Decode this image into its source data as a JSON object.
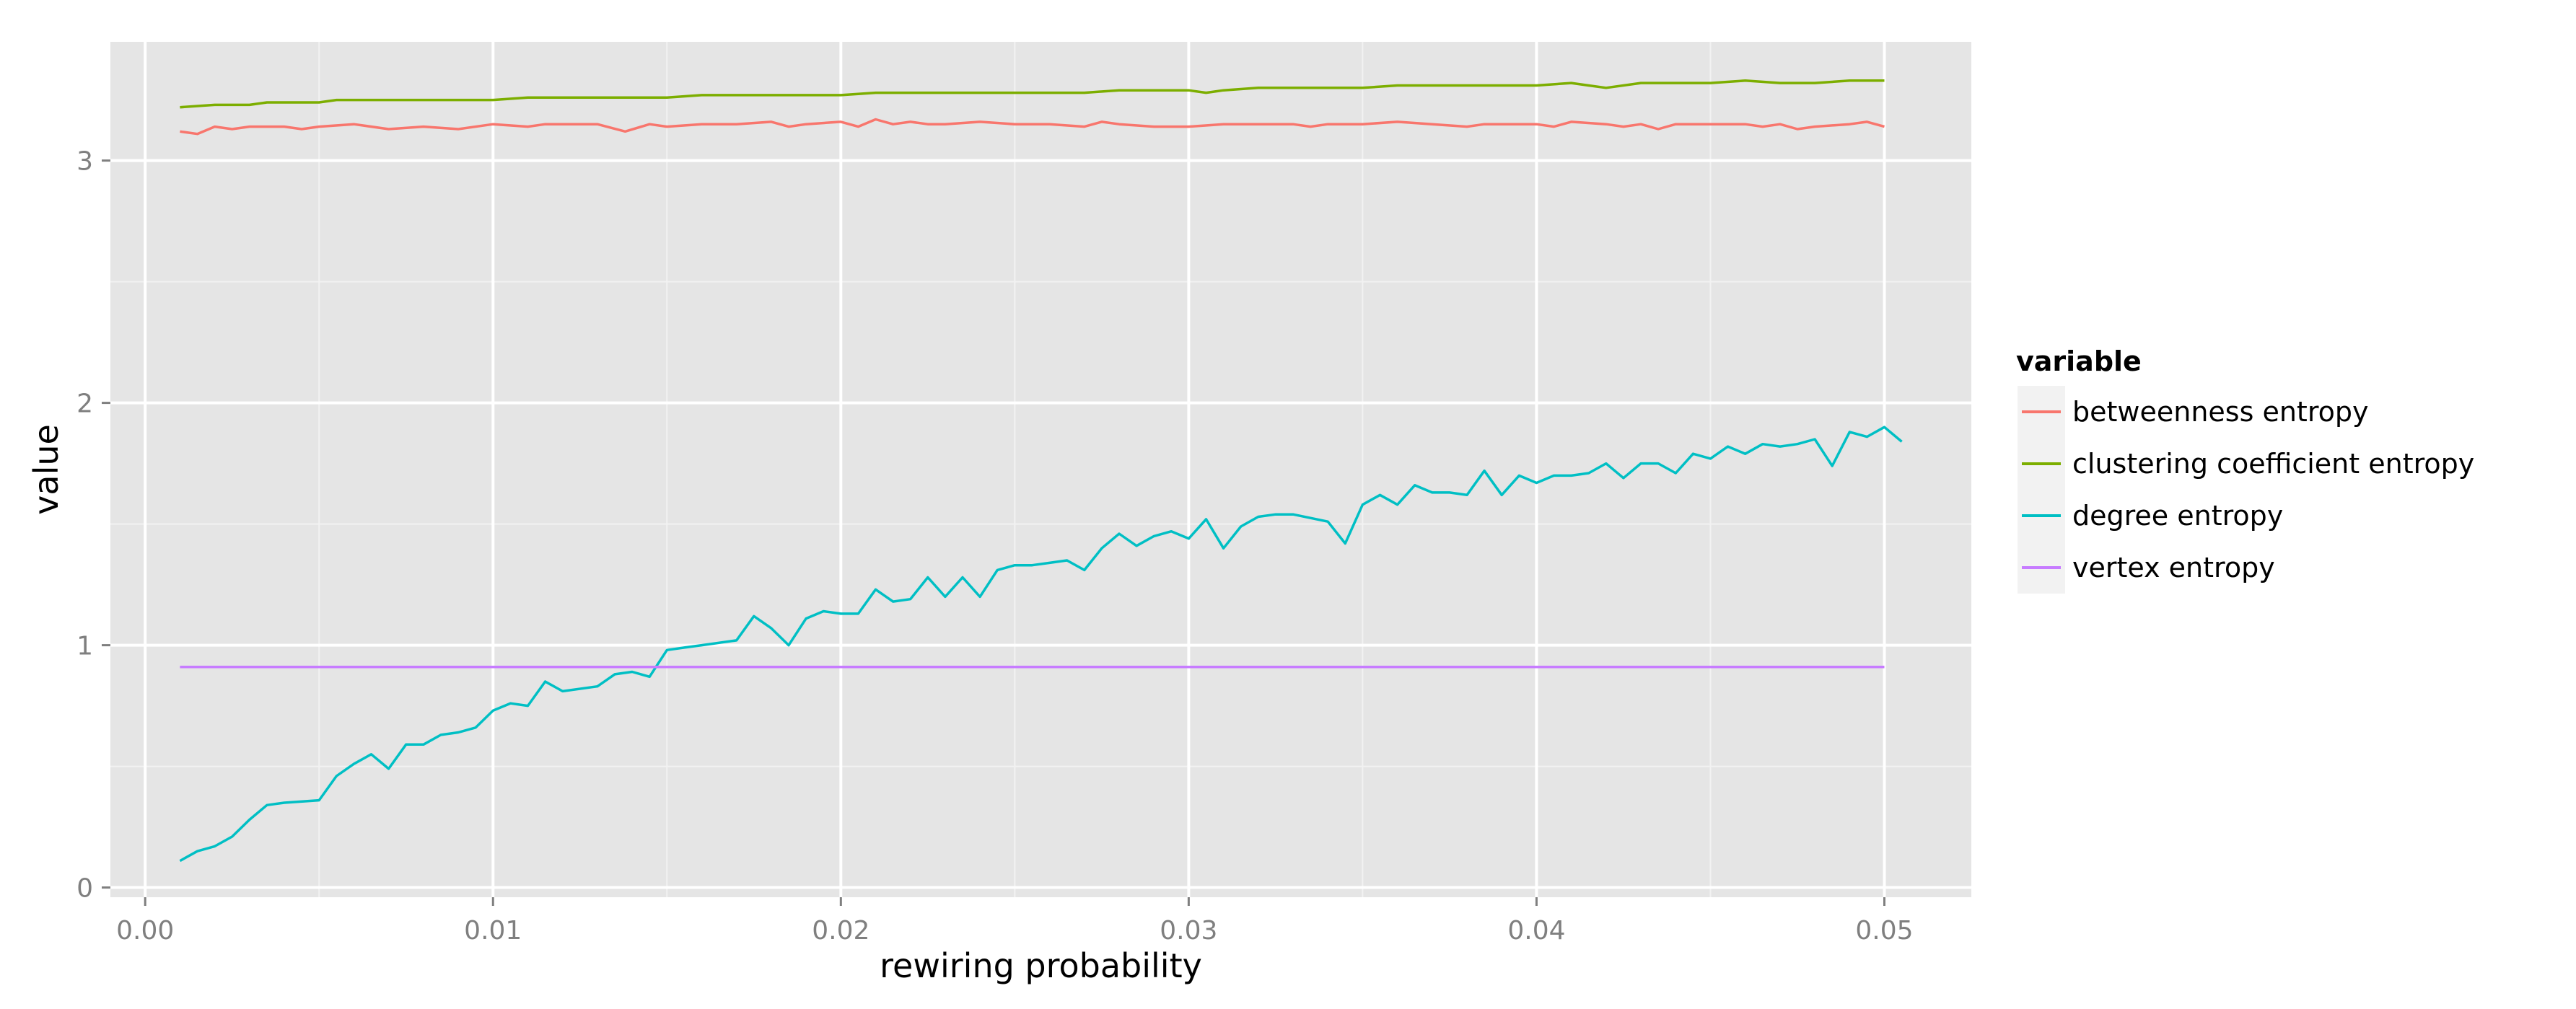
{
  "chart_data": {
    "type": "line",
    "title": "",
    "xlabel": "rewiring probability",
    "ylabel": "value",
    "xlim": [
      -0.001,
      0.0525
    ],
    "ylim": [
      -0.04,
      3.49
    ],
    "x_ticks": [
      0.0,
      0.01,
      0.02,
      0.03,
      0.04,
      0.05
    ],
    "x_tick_labels": [
      "0.00",
      "0.01",
      "0.02",
      "0.03",
      "0.04",
      "0.05"
    ],
    "y_ticks": [
      0,
      1,
      2,
      3
    ],
    "y_tick_labels": [
      "0",
      "1",
      "2",
      "3"
    ],
    "grid": true,
    "legend": {
      "title": "variable",
      "position": "right",
      "entries": [
        "betweenness entropy",
        "clustering coefficient entropy",
        "degree entropy",
        "vertex entropy"
      ]
    },
    "series": [
      {
        "name": "betweenness entropy",
        "color": "#F8766D",
        "points": [
          [
            0.001,
            3.12
          ],
          [
            0.0015,
            3.11
          ],
          [
            0.002,
            3.14
          ],
          [
            0.0025,
            3.13
          ],
          [
            0.003,
            3.14
          ],
          [
            0.004,
            3.14
          ],
          [
            0.0045,
            3.13
          ],
          [
            0.005,
            3.14
          ],
          [
            0.006,
            3.15
          ],
          [
            0.007,
            3.13
          ],
          [
            0.008,
            3.14
          ],
          [
            0.009,
            3.13
          ],
          [
            0.01,
            3.15
          ],
          [
            0.011,
            3.14
          ],
          [
            0.0115,
            3.15
          ],
          [
            0.012,
            3.15
          ],
          [
            0.013,
            3.15
          ],
          [
            0.0138,
            3.12
          ],
          [
            0.0145,
            3.15
          ],
          [
            0.015,
            3.14
          ],
          [
            0.016,
            3.15
          ],
          [
            0.017,
            3.15
          ],
          [
            0.018,
            3.16
          ],
          [
            0.0185,
            3.14
          ],
          [
            0.019,
            3.15
          ],
          [
            0.02,
            3.16
          ],
          [
            0.0205,
            3.14
          ],
          [
            0.021,
            3.17
          ],
          [
            0.0215,
            3.15
          ],
          [
            0.022,
            3.16
          ],
          [
            0.0225,
            3.15
          ],
          [
            0.023,
            3.15
          ],
          [
            0.024,
            3.16
          ],
          [
            0.025,
            3.15
          ],
          [
            0.026,
            3.15
          ],
          [
            0.027,
            3.14
          ],
          [
            0.0275,
            3.16
          ],
          [
            0.028,
            3.15
          ],
          [
            0.029,
            3.14
          ],
          [
            0.03,
            3.14
          ],
          [
            0.031,
            3.15
          ],
          [
            0.032,
            3.15
          ],
          [
            0.033,
            3.15
          ],
          [
            0.0335,
            3.14
          ],
          [
            0.034,
            3.15
          ],
          [
            0.035,
            3.15
          ],
          [
            0.036,
            3.16
          ],
          [
            0.037,
            3.15
          ],
          [
            0.038,
            3.14
          ],
          [
            0.0385,
            3.15
          ],
          [
            0.039,
            3.15
          ],
          [
            0.04,
            3.15
          ],
          [
            0.0405,
            3.14
          ],
          [
            0.041,
            3.16
          ],
          [
            0.042,
            3.15
          ],
          [
            0.0425,
            3.14
          ],
          [
            0.043,
            3.15
          ],
          [
            0.0435,
            3.13
          ],
          [
            0.044,
            3.15
          ],
          [
            0.045,
            3.15
          ],
          [
            0.046,
            3.15
          ],
          [
            0.0465,
            3.14
          ],
          [
            0.047,
            3.15
          ],
          [
            0.0475,
            3.13
          ],
          [
            0.048,
            3.14
          ],
          [
            0.049,
            3.15
          ],
          [
            0.0495,
            3.16
          ],
          [
            0.05,
            3.14
          ]
        ]
      },
      {
        "name": "clustering coefficient entropy",
        "color": "#7CAE00",
        "points": [
          [
            0.001,
            3.22
          ],
          [
            0.002,
            3.23
          ],
          [
            0.003,
            3.23
          ],
          [
            0.0035,
            3.24
          ],
          [
            0.005,
            3.24
          ],
          [
            0.0055,
            3.25
          ],
          [
            0.007,
            3.25
          ],
          [
            0.008,
            3.25
          ],
          [
            0.009,
            3.25
          ],
          [
            0.01,
            3.25
          ],
          [
            0.011,
            3.26
          ],
          [
            0.012,
            3.26
          ],
          [
            0.013,
            3.26
          ],
          [
            0.014,
            3.26
          ],
          [
            0.015,
            3.26
          ],
          [
            0.016,
            3.27
          ],
          [
            0.017,
            3.27
          ],
          [
            0.018,
            3.27
          ],
          [
            0.019,
            3.27
          ],
          [
            0.02,
            3.27
          ],
          [
            0.021,
            3.28
          ],
          [
            0.022,
            3.28
          ],
          [
            0.023,
            3.28
          ],
          [
            0.024,
            3.28
          ],
          [
            0.025,
            3.28
          ],
          [
            0.026,
            3.28
          ],
          [
            0.027,
            3.28
          ],
          [
            0.028,
            3.29
          ],
          [
            0.029,
            3.29
          ],
          [
            0.03,
            3.29
          ],
          [
            0.0305,
            3.28
          ],
          [
            0.031,
            3.29
          ],
          [
            0.032,
            3.3
          ],
          [
            0.033,
            3.3
          ],
          [
            0.034,
            3.3
          ],
          [
            0.035,
            3.3
          ],
          [
            0.036,
            3.31
          ],
          [
            0.037,
            3.31
          ],
          [
            0.038,
            3.31
          ],
          [
            0.039,
            3.31
          ],
          [
            0.04,
            3.31
          ],
          [
            0.041,
            3.32
          ],
          [
            0.0415,
            3.31
          ],
          [
            0.042,
            3.3
          ],
          [
            0.043,
            3.32
          ],
          [
            0.044,
            3.32
          ],
          [
            0.045,
            3.32
          ],
          [
            0.046,
            3.33
          ],
          [
            0.047,
            3.32
          ],
          [
            0.048,
            3.32
          ],
          [
            0.049,
            3.33
          ],
          [
            0.05,
            3.33
          ]
        ]
      },
      {
        "name": "degree entropy",
        "color": "#00BFC4",
        "points": [
          [
            0.001,
            0.11
          ],
          [
            0.0015,
            0.15
          ],
          [
            0.002,
            0.17
          ],
          [
            0.0025,
            0.21
          ],
          [
            0.003,
            0.28
          ],
          [
            0.0035,
            0.34
          ],
          [
            0.004,
            0.35
          ],
          [
            0.005,
            0.36
          ],
          [
            0.0055,
            0.46
          ],
          [
            0.006,
            0.51
          ],
          [
            0.0065,
            0.55
          ],
          [
            0.007,
            0.49
          ],
          [
            0.0075,
            0.59
          ],
          [
            0.008,
            0.59
          ],
          [
            0.0085,
            0.63
          ],
          [
            0.009,
            0.64
          ],
          [
            0.0095,
            0.66
          ],
          [
            0.01,
            0.73
          ],
          [
            0.0105,
            0.76
          ],
          [
            0.011,
            0.75
          ],
          [
            0.0115,
            0.85
          ],
          [
            0.012,
            0.81
          ],
          [
            0.013,
            0.83
          ],
          [
            0.0135,
            0.88
          ],
          [
            0.014,
            0.89
          ],
          [
            0.0145,
            0.87
          ],
          [
            0.015,
            0.98
          ],
          [
            0.0155,
            0.99
          ],
          [
            0.016,
            1.0
          ],
          [
            0.017,
            1.02
          ],
          [
            0.0175,
            1.12
          ],
          [
            0.018,
            1.07
          ],
          [
            0.0185,
            1.0
          ],
          [
            0.019,
            1.11
          ],
          [
            0.0195,
            1.14
          ],
          [
            0.02,
            1.13
          ],
          [
            0.0205,
            1.13
          ],
          [
            0.021,
            1.23
          ],
          [
            0.0215,
            1.18
          ],
          [
            0.022,
            1.19
          ],
          [
            0.0225,
            1.28
          ],
          [
            0.023,
            1.2
          ],
          [
            0.0235,
            1.28
          ],
          [
            0.024,
            1.2
          ],
          [
            0.0245,
            1.31
          ],
          [
            0.025,
            1.33
          ],
          [
            0.0255,
            1.33
          ],
          [
            0.026,
            1.34
          ],
          [
            0.0265,
            1.35
          ],
          [
            0.027,
            1.31
          ],
          [
            0.0275,
            1.4
          ],
          [
            0.028,
            1.46
          ],
          [
            0.0285,
            1.41
          ],
          [
            0.029,
            1.45
          ],
          [
            0.0295,
            1.47
          ],
          [
            0.03,
            1.44
          ],
          [
            0.0305,
            1.52
          ],
          [
            0.031,
            1.4
          ],
          [
            0.0315,
            1.49
          ],
          [
            0.032,
            1.53
          ],
          [
            0.0325,
            1.54
          ],
          [
            0.033,
            1.54
          ],
          [
            0.034,
            1.51
          ],
          [
            0.0345,
            1.42
          ],
          [
            0.035,
            1.58
          ],
          [
            0.0355,
            1.62
          ],
          [
            0.036,
            1.58
          ],
          [
            0.0365,
            1.66
          ],
          [
            0.037,
            1.63
          ],
          [
            0.0375,
            1.63
          ],
          [
            0.038,
            1.62
          ],
          [
            0.0385,
            1.72
          ],
          [
            0.039,
            1.62
          ],
          [
            0.0395,
            1.7
          ],
          [
            0.04,
            1.67
          ],
          [
            0.0405,
            1.7
          ],
          [
            0.041,
            1.7
          ],
          [
            0.0415,
            1.71
          ],
          [
            0.042,
            1.75
          ],
          [
            0.0425,
            1.69
          ],
          [
            0.043,
            1.75
          ],
          [
            0.0435,
            1.75
          ],
          [
            0.044,
            1.71
          ],
          [
            0.0445,
            1.79
          ],
          [
            0.045,
            1.77
          ],
          [
            0.0455,
            1.82
          ],
          [
            0.046,
            1.79
          ],
          [
            0.0465,
            1.83
          ],
          [
            0.047,
            1.82
          ],
          [
            0.0475,
            1.83
          ],
          [
            0.048,
            1.85
          ],
          [
            0.0485,
            1.74
          ],
          [
            0.049,
            1.88
          ],
          [
            0.0495,
            1.86
          ],
          [
            0.05,
            1.9
          ],
          [
            0.0505,
            1.84
          ]
        ]
      },
      {
        "name": "vertex entropy",
        "color": "#C77CFF",
        "points": [
          [
            0.001,
            0.91
          ],
          [
            0.0015,
            0.91
          ],
          [
            0.002,
            0.91
          ],
          [
            0.003,
            0.91
          ],
          [
            0.004,
            0.91
          ],
          [
            0.005,
            0.91
          ],
          [
            0.006,
            0.91
          ],
          [
            0.007,
            0.91
          ],
          [
            0.008,
            0.91
          ],
          [
            0.009,
            0.91
          ],
          [
            0.01,
            0.91
          ],
          [
            0.011,
            0.91
          ],
          [
            0.012,
            0.91
          ],
          [
            0.013,
            0.91
          ],
          [
            0.014,
            0.91
          ],
          [
            0.015,
            0.91
          ],
          [
            0.016,
            0.91
          ],
          [
            0.017,
            0.91
          ],
          [
            0.018,
            0.91
          ],
          [
            0.019,
            0.91
          ],
          [
            0.02,
            0.91
          ],
          [
            0.021,
            0.91
          ],
          [
            0.022,
            0.91
          ],
          [
            0.023,
            0.91
          ],
          [
            0.024,
            0.91
          ],
          [
            0.025,
            0.91
          ],
          [
            0.026,
            0.91
          ],
          [
            0.027,
            0.91
          ],
          [
            0.028,
            0.91
          ],
          [
            0.029,
            0.91
          ],
          [
            0.03,
            0.91
          ],
          [
            0.031,
            0.91
          ],
          [
            0.032,
            0.91
          ],
          [
            0.033,
            0.91
          ],
          [
            0.034,
            0.91
          ],
          [
            0.035,
            0.91
          ],
          [
            0.036,
            0.91
          ],
          [
            0.037,
            0.91
          ],
          [
            0.038,
            0.91
          ],
          [
            0.039,
            0.91
          ],
          [
            0.04,
            0.91
          ],
          [
            0.041,
            0.91
          ],
          [
            0.042,
            0.91
          ],
          [
            0.043,
            0.91
          ],
          [
            0.044,
            0.91
          ],
          [
            0.045,
            0.91
          ],
          [
            0.046,
            0.91
          ],
          [
            0.047,
            0.91
          ],
          [
            0.048,
            0.91
          ],
          [
            0.049,
            0.91
          ],
          [
            0.05,
            0.91
          ]
        ]
      }
    ]
  },
  "colors": {
    "panel_background": "#E5E5E5",
    "grid_major": "#FFFFFF",
    "grid_minor": "#F2F2F2",
    "tick_label": "#7F7F7F",
    "legend_key_background": "#F2F2F2"
  }
}
